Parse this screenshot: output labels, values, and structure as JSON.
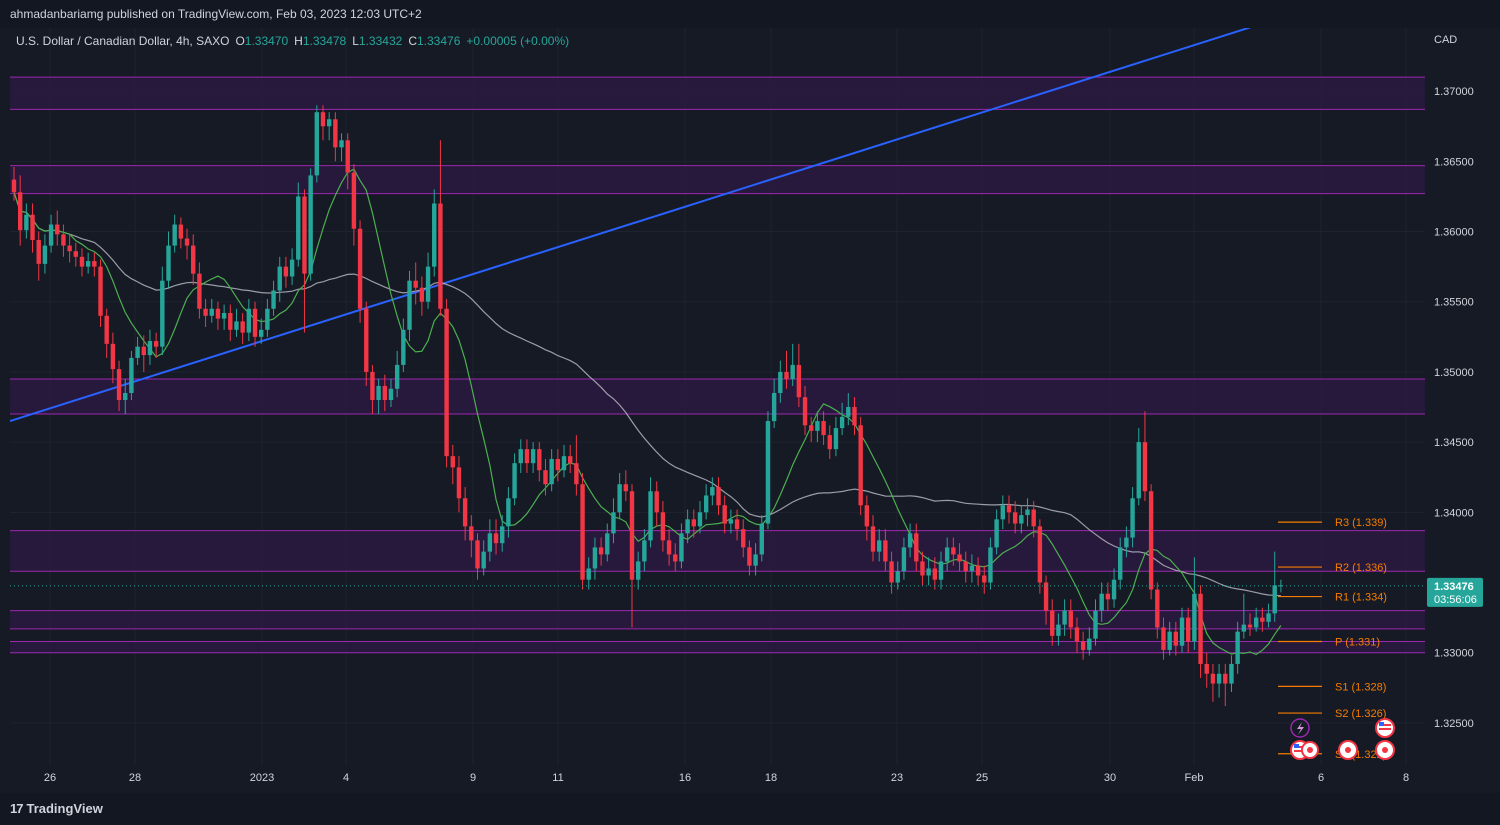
{
  "header": {
    "published": "ahmadanbariamg published on TradingView.com, Feb 03, 2023 12:03 UTC+2"
  },
  "legend": {
    "symbol": "U.S. Dollar / Canadian Dollar, 4h, SAXO",
    "o_label": "O",
    "o": "1.33470",
    "h_label": "H",
    "h": "1.33478",
    "l_label": "L",
    "l": "1.33432",
    "c_label": "C",
    "c": "1.33476",
    "change": "+0.00005 (+0.00%)"
  },
  "colors": {
    "up": "#26a69a",
    "down": "#f23645",
    "zone_fill": "#2a1a40",
    "zone_line": "#9c27b0",
    "trendline": "#2962ff",
    "ma_fast": "#4caf50",
    "ma_slow": "#b2b5be",
    "pivot": "#f57c00"
  },
  "chart_data": {
    "type": "candlestick",
    "currency": "CAD",
    "x_ticks": [
      "26",
      "28",
      "2023",
      "4",
      "9",
      "11",
      "16",
      "18",
      "23",
      "25",
      "30",
      "Feb",
      "6",
      "8"
    ],
    "y_ticks": [
      "1.37000",
      "1.36500",
      "1.36000",
      "1.35500",
      "1.35000",
      "1.34500",
      "1.34000",
      "1.33000",
      "1.32500"
    ],
    "ylim": [
      1.322,
      1.3745
    ],
    "last_price": "1.33476",
    "countdown": "03:56:06",
    "zones": [
      {
        "top": 1.371,
        "bottom": 1.3687
      },
      {
        "top": 1.3647,
        "bottom": 1.3627
      },
      {
        "top": 1.3495,
        "bottom": 1.347
      },
      {
        "top": 1.3387,
        "bottom": 1.3358
      },
      {
        "top": 1.333,
        "bottom": 1.3317
      },
      {
        "top": 1.3308,
        "bottom": 1.33
      }
    ],
    "trendline": {
      "start": [
        0,
        1.3465
      ],
      "end": [
        1.0,
        1.3759
      ]
    },
    "pivots": [
      {
        "label": "R3 (1.339)",
        "value": 1.3393
      },
      {
        "label": "R2 (1.336)",
        "value": 1.3361
      },
      {
        "label": "R1 (1.334)",
        "value": 1.334
      },
      {
        "label": "P (1.331)",
        "value": 1.3308
      },
      {
        "label": "S1 (1.328)",
        "value": 1.3276
      },
      {
        "label": "S2 (1.326)",
        "value": 1.3257
      },
      {
        "label": "S3 (1.322)",
        "value": 1.3228
      }
    ],
    "candles": [
      [
        1.3637,
        1.3628,
        1.3646,
        1.3622
      ],
      [
        1.3628,
        1.3601,
        1.364,
        1.359
      ],
      [
        1.3601,
        1.3612,
        1.362,
        1.3595
      ],
      [
        1.3612,
        1.3594,
        1.362,
        1.3585
      ],
      [
        1.3594,
        1.3577,
        1.36,
        1.3565
      ],
      [
        1.3577,
        1.359,
        1.3598,
        1.357
      ],
      [
        1.359,
        1.3605,
        1.3612,
        1.3585
      ],
      [
        1.3605,
        1.3598,
        1.3615,
        1.359
      ],
      [
        1.3598,
        1.359,
        1.3605,
        1.3582
      ],
      [
        1.359,
        1.3586,
        1.3598,
        1.3578
      ],
      [
        1.3586,
        1.3582,
        1.3592,
        1.3575
      ],
      [
        1.3582,
        1.3575,
        1.3588,
        1.3568
      ],
      [
        1.3575,
        1.3579,
        1.3585,
        1.357
      ],
      [
        1.3579,
        1.3575,
        1.3585,
        1.3568
      ],
      [
        1.3575,
        1.354,
        1.358,
        1.3532
      ],
      [
        1.354,
        1.352,
        1.3545,
        1.351
      ],
      [
        1.352,
        1.3502,
        1.3528,
        1.3492
      ],
      [
        1.3502,
        1.348,
        1.3508,
        1.3472
      ],
      [
        1.348,
        1.3485,
        1.3495,
        1.347
      ],
      [
        1.3485,
        1.351,
        1.3515,
        1.348
      ],
      [
        1.351,
        1.3518,
        1.3525,
        1.3505
      ],
      [
        1.3518,
        1.3512,
        1.3526,
        1.35
      ],
      [
        1.3512,
        1.3522,
        1.353,
        1.3505
      ],
      [
        1.3522,
        1.3518,
        1.3528,
        1.351
      ],
      [
        1.3518,
        1.3565,
        1.3575,
        1.3512
      ],
      [
        1.3565,
        1.359,
        1.36,
        1.356
      ],
      [
        1.359,
        1.3605,
        1.3612,
        1.3585
      ],
      [
        1.3605,
        1.3595,
        1.361,
        1.3588
      ],
      [
        1.3595,
        1.359,
        1.3602,
        1.358
      ],
      [
        1.359,
        1.357,
        1.3598,
        1.3562
      ],
      [
        1.357,
        1.3545,
        1.3578,
        1.3538
      ],
      [
        1.3545,
        1.354,
        1.3552,
        1.3532
      ],
      [
        1.354,
        1.3545,
        1.3552,
        1.3535
      ],
      [
        1.3545,
        1.3538,
        1.355,
        1.353
      ],
      [
        1.3538,
        1.3542,
        1.3548,
        1.353
      ],
      [
        1.3542,
        1.353,
        1.3548,
        1.3522
      ],
      [
        1.353,
        1.3536,
        1.3545,
        1.3525
      ],
      [
        1.3536,
        1.3528,
        1.3542,
        1.352
      ],
      [
        1.3528,
        1.3545,
        1.3552,
        1.3522
      ],
      [
        1.3545,
        1.3525,
        1.355,
        1.3518
      ],
      [
        1.3525,
        1.353,
        1.3538,
        1.352
      ],
      [
        1.353,
        1.3545,
        1.3552,
        1.3525
      ],
      [
        1.3545,
        1.3558,
        1.3565,
        1.354
      ],
      [
        1.3558,
        1.3575,
        1.3582,
        1.355
      ],
      [
        1.3575,
        1.3568,
        1.3582,
        1.356
      ],
      [
        1.3568,
        1.358,
        1.3588,
        1.3562
      ],
      [
        1.358,
        1.3625,
        1.3635,
        1.3575
      ],
      [
        1.3625,
        1.357,
        1.363,
        1.3528
      ],
      [
        1.357,
        1.364,
        1.3645,
        1.3565
      ],
      [
        1.364,
        1.3685,
        1.369,
        1.3635
      ],
      [
        1.3685,
        1.3675,
        1.369,
        1.3665
      ],
      [
        1.3675,
        1.368,
        1.3685,
        1.3665
      ],
      [
        1.368,
        1.366,
        1.3685,
        1.365
      ],
      [
        1.366,
        1.3665,
        1.367,
        1.365
      ],
      [
        1.3665,
        1.3642,
        1.367,
        1.363
      ],
      [
        1.3642,
        1.3602,
        1.3648,
        1.359
      ],
      [
        1.3602,
        1.3545,
        1.3608,
        1.3535
      ],
      [
        1.3545,
        1.35,
        1.355,
        1.349
      ],
      [
        1.35,
        1.348,
        1.3505,
        1.347
      ],
      [
        1.348,
        1.349,
        1.3495,
        1.347
      ],
      [
        1.349,
        1.348,
        1.3498,
        1.3472
      ],
      [
        1.348,
        1.3488,
        1.3495,
        1.3475
      ],
      [
        1.3488,
        1.3505,
        1.3515,
        1.3482
      ],
      [
        1.3505,
        1.353,
        1.3538,
        1.35
      ],
      [
        1.353,
        1.3565,
        1.3572,
        1.3522
      ],
      [
        1.3565,
        1.356,
        1.3578,
        1.3548
      ],
      [
        1.356,
        1.355,
        1.3568,
        1.354
      ],
      [
        1.355,
        1.3575,
        1.3585,
        1.3545
      ],
      [
        1.3575,
        1.362,
        1.363,
        1.3568
      ],
      [
        1.362,
        1.3545,
        1.3665,
        1.354
      ],
      [
        1.3545,
        1.344,
        1.3552,
        1.3432
      ],
      [
        1.344,
        1.3432,
        1.3448,
        1.342
      ],
      [
        1.3432,
        1.341,
        1.344,
        1.34
      ],
      [
        1.341,
        1.339,
        1.3418,
        1.338
      ],
      [
        1.339,
        1.338,
        1.3398,
        1.3368
      ],
      [
        1.338,
        1.336,
        1.3385,
        1.3352
      ],
      [
        1.336,
        1.3372,
        1.338,
        1.3355
      ],
      [
        1.3372,
        1.3385,
        1.3395,
        1.3365
      ],
      [
        1.3385,
        1.3378,
        1.3395,
        1.337
      ],
      [
        1.3378,
        1.339,
        1.3398,
        1.3372
      ],
      [
        1.339,
        1.341,
        1.3418,
        1.3382
      ],
      [
        1.341,
        1.3435,
        1.3442,
        1.3405
      ],
      [
        1.3435,
        1.3445,
        1.3452,
        1.3428
      ],
      [
        1.3445,
        1.3435,
        1.3452,
        1.3428
      ],
      [
        1.3435,
        1.3445,
        1.345,
        1.3428
      ],
      [
        1.3445,
        1.343,
        1.345,
        1.3422
      ],
      [
        1.343,
        1.342,
        1.3438,
        1.3412
      ],
      [
        1.342,
        1.3438,
        1.3445,
        1.3415
      ],
      [
        1.3438,
        1.343,
        1.3445,
        1.3422
      ],
      [
        1.343,
        1.344,
        1.3448,
        1.3425
      ],
      [
        1.344,
        1.3435,
        1.3448,
        1.3428
      ],
      [
        1.3435,
        1.342,
        1.3455,
        1.3412
      ],
      [
        1.342,
        1.3352,
        1.3428,
        1.3345
      ],
      [
        1.3352,
        1.336,
        1.3368,
        1.3345
      ],
      [
        1.336,
        1.3375,
        1.3382,
        1.3352
      ],
      [
        1.3375,
        1.337,
        1.3382,
        1.3362
      ],
      [
        1.337,
        1.3385,
        1.3392,
        1.3365
      ],
      [
        1.3385,
        1.34,
        1.341,
        1.3378
      ],
      [
        1.34,
        1.342,
        1.3428,
        1.3395
      ],
      [
        1.342,
        1.3415,
        1.343,
        1.3408
      ],
      [
        1.3415,
        1.3352,
        1.342,
        1.3318
      ],
      [
        1.3352,
        1.3365,
        1.3372,
        1.3345
      ],
      [
        1.3365,
        1.338,
        1.3388,
        1.3358
      ],
      [
        1.338,
        1.3415,
        1.3425,
        1.3375
      ],
      [
        1.3415,
        1.34,
        1.3422,
        1.339
      ],
      [
        1.34,
        1.338,
        1.3408,
        1.3372
      ],
      [
        1.338,
        1.337,
        1.3388,
        1.3362
      ],
      [
        1.337,
        1.3365,
        1.3378,
        1.3358
      ],
      [
        1.3365,
        1.3385,
        1.3392,
        1.336
      ],
      [
        1.3385,
        1.3395,
        1.3402,
        1.3378
      ],
      [
        1.3395,
        1.339,
        1.3402,
        1.3382
      ],
      [
        1.339,
        1.34,
        1.3408,
        1.3385
      ],
      [
        1.34,
        1.3412,
        1.342,
        1.3395
      ],
      [
        1.3412,
        1.3418,
        1.3425,
        1.3405
      ],
      [
        1.3418,
        1.3405,
        1.3425,
        1.3398
      ],
      [
        1.3405,
        1.3392,
        1.3412,
        1.3385
      ],
      [
        1.3392,
        1.3395,
        1.3402,
        1.3385
      ],
      [
        1.3395,
        1.3388,
        1.3402,
        1.338
      ],
      [
        1.3388,
        1.3375,
        1.3395,
        1.3368
      ],
      [
        1.3375,
        1.3362,
        1.338,
        1.3355
      ],
      [
        1.3362,
        1.337,
        1.3378,
        1.3355
      ],
      [
        1.337,
        1.3392,
        1.3398,
        1.3365
      ],
      [
        1.3392,
        1.3465,
        1.3472,
        1.3388
      ],
      [
        1.3465,
        1.3485,
        1.3495,
        1.346
      ],
      [
        1.3485,
        1.35,
        1.3508,
        1.3478
      ],
      [
        1.35,
        1.3495,
        1.3515,
        1.3488
      ],
      [
        1.3495,
        1.3505,
        1.352,
        1.349
      ],
      [
        1.3505,
        1.3482,
        1.352,
        1.3475
      ],
      [
        1.3482,
        1.3462,
        1.349,
        1.3455
      ],
      [
        1.3462,
        1.3458,
        1.3468,
        1.345
      ],
      [
        1.3458,
        1.3465,
        1.3472,
        1.345
      ],
      [
        1.3465,
        1.3455,
        1.3472,
        1.3448
      ],
      [
        1.3455,
        1.3445,
        1.3462,
        1.3438
      ],
      [
        1.3445,
        1.346,
        1.3468,
        1.344
      ],
      [
        1.346,
        1.3468,
        1.3478,
        1.3455
      ],
      [
        1.3468,
        1.3475,
        1.3485,
        1.3462
      ],
      [
        1.3475,
        1.3462,
        1.3482,
        1.3455
      ],
      [
        1.3462,
        1.3405,
        1.3468,
        1.3398
      ],
      [
        1.3405,
        1.339,
        1.3412,
        1.338
      ],
      [
        1.339,
        1.3372,
        1.3398,
        1.3365
      ],
      [
        1.3372,
        1.338,
        1.3388,
        1.3365
      ],
      [
        1.338,
        1.3365,
        1.3388,
        1.3358
      ],
      [
        1.3365,
        1.335,
        1.3372,
        1.3342
      ],
      [
        1.335,
        1.3358,
        1.3365,
        1.3345
      ],
      [
        1.3358,
        1.3375,
        1.3382,
        1.3352
      ],
      [
        1.3375,
        1.3385,
        1.3392,
        1.3368
      ],
      [
        1.3385,
        1.3365,
        1.3392,
        1.3358
      ],
      [
        1.3365,
        1.3355,
        1.3372,
        1.3348
      ],
      [
        1.3355,
        1.336,
        1.3368,
        1.3348
      ],
      [
        1.336,
        1.3352,
        1.3368,
        1.3345
      ],
      [
        1.3352,
        1.3365,
        1.3372,
        1.3345
      ],
      [
        1.3365,
        1.3375,
        1.3382,
        1.3358
      ],
      [
        1.3375,
        1.337,
        1.3382,
        1.3362
      ],
      [
        1.337,
        1.3365,
        1.3378,
        1.3358
      ],
      [
        1.3365,
        1.3358,
        1.3372,
        1.335
      ],
      [
        1.3358,
        1.3362,
        1.337,
        1.335
      ],
      [
        1.3362,
        1.3355,
        1.3368,
        1.3348
      ],
      [
        1.3355,
        1.335,
        1.3362,
        1.3342
      ],
      [
        1.335,
        1.3375,
        1.3382,
        1.3345
      ],
      [
        1.3375,
        1.3395,
        1.3402,
        1.337
      ],
      [
        1.3395,
        1.3405,
        1.3412,
        1.3388
      ],
      [
        1.3405,
        1.34,
        1.3412,
        1.3392
      ],
      [
        1.34,
        1.3392,
        1.3408,
        1.3385
      ],
      [
        1.3392,
        1.3398,
        1.3405,
        1.3385
      ],
      [
        1.3398,
        1.3402,
        1.341,
        1.339
      ],
      [
        1.3402,
        1.339,
        1.3408,
        1.3382
      ],
      [
        1.339,
        1.335,
        1.3395,
        1.3342
      ],
      [
        1.335,
        1.333,
        1.3355,
        1.332
      ],
      [
        1.333,
        1.3312,
        1.3338,
        1.3305
      ],
      [
        1.3312,
        1.332,
        1.3328,
        1.3305
      ],
      [
        1.332,
        1.333,
        1.3338,
        1.3312
      ],
      [
        1.333,
        1.3318,
        1.3338,
        1.331
      ],
      [
        1.3318,
        1.3308,
        1.3325,
        1.33
      ],
      [
        1.3308,
        1.3302,
        1.3315,
        1.3295
      ],
      [
        1.3302,
        1.331,
        1.3318,
        1.3298
      ],
      [
        1.331,
        1.333,
        1.3338,
        1.3305
      ],
      [
        1.333,
        1.3342,
        1.335,
        1.3322
      ],
      [
        1.3342,
        1.3338,
        1.335,
        1.333
      ],
      [
        1.3338,
        1.3352,
        1.336,
        1.3332
      ],
      [
        1.3352,
        1.3375,
        1.3382,
        1.3345
      ],
      [
        1.3375,
        1.3382,
        1.339,
        1.3368
      ],
      [
        1.3382,
        1.341,
        1.3418,
        1.3375
      ],
      [
        1.341,
        1.345,
        1.346,
        1.3405
      ],
      [
        1.345,
        1.3415,
        1.3472,
        1.3408
      ],
      [
        1.3415,
        1.3345,
        1.342,
        1.3338
      ],
      [
        1.3345,
        1.3318,
        1.335,
        1.331
      ],
      [
        1.3318,
        1.3302,
        1.3325,
        1.3295
      ],
      [
        1.3302,
        1.3315,
        1.3322,
        1.3298
      ],
      [
        1.3315,
        1.3305,
        1.3322,
        1.3298
      ],
      [
        1.3305,
        1.3325,
        1.3332,
        1.33
      ],
      [
        1.3325,
        1.3308,
        1.3332,
        1.33
      ],
      [
        1.3308,
        1.3342,
        1.3368,
        1.3302
      ],
      [
        1.3342,
        1.3292,
        1.3348,
        1.3282
      ],
      [
        1.3292,
        1.3285,
        1.33,
        1.3275
      ],
      [
        1.3285,
        1.3278,
        1.3292,
        1.3265
      ],
      [
        1.3278,
        1.3285,
        1.3292,
        1.3268
      ],
      [
        1.3285,
        1.3278,
        1.3292,
        1.3262
      ],
      [
        1.3278,
        1.3292,
        1.3298,
        1.3272
      ],
      [
        1.3292,
        1.3315,
        1.3322,
        1.3285
      ],
      [
        1.3315,
        1.332,
        1.3342,
        1.331
      ],
      [
        1.332,
        1.3318,
        1.3328,
        1.3312
      ],
      [
        1.3318,
        1.3325,
        1.3332,
        1.3315
      ],
      [
        1.3325,
        1.3322,
        1.3332,
        1.3315
      ],
      [
        1.3322,
        1.3328,
        1.3335,
        1.3318
      ],
      [
        1.3328,
        1.3348,
        1.3372,
        1.3322
      ],
      [
        1.3348,
        1.3348,
        1.3352,
        1.3343
      ]
    ]
  },
  "footer": {
    "brand": "TradingView",
    "logo": "17"
  }
}
